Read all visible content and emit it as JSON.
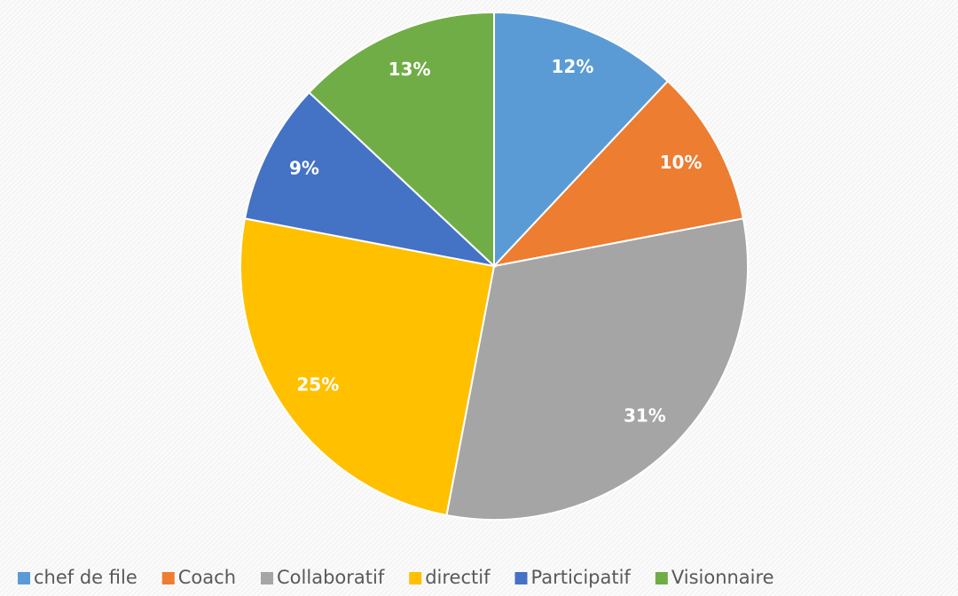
{
  "chart_data": {
    "type": "pie",
    "categories": [
      "chef de file",
      "Coach",
      "Collaboratif",
      "directif",
      "Participatif",
      "Visionnaire"
    ],
    "values": [
      12,
      10,
      31,
      25,
      9,
      13
    ],
    "value_labels": [
      "12%",
      "10%",
      "31%",
      "25%",
      "9%",
      "13%"
    ],
    "colors": [
      "#5b9bd5",
      "#ed7d31",
      "#a5a5a5",
      "#ffc000",
      "#4472c4",
      "#70ad47"
    ],
    "legend": "bottom"
  }
}
